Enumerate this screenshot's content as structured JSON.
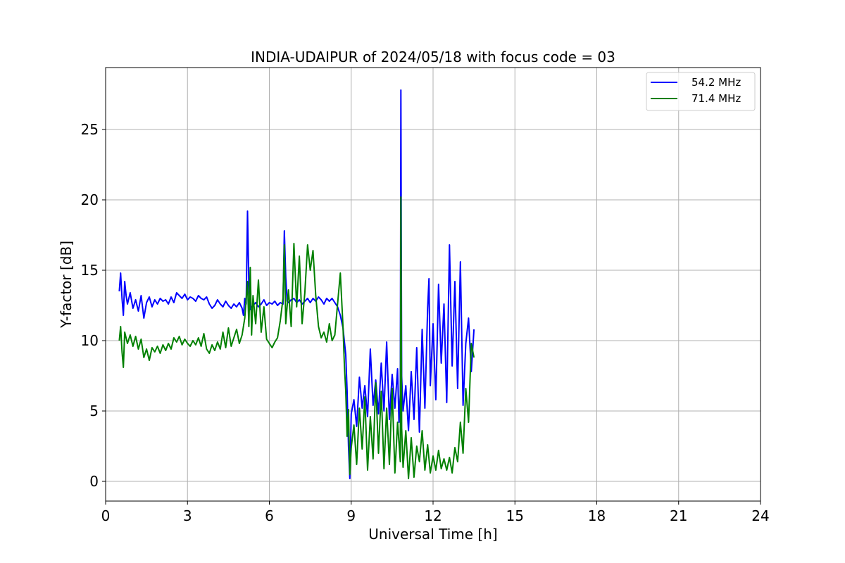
{
  "chart_data": {
    "type": "line",
    "title": "INDIA-UDAIPUR of 2024/05/18 with focus code = 03",
    "xlabel": "Universal Time [h]",
    "ylabel": "Y-factor [dB]",
    "xlim": [
      0,
      24
    ],
    "ylim": [
      -1.4,
      29.4
    ],
    "xticks": [
      0,
      3,
      6,
      9,
      12,
      15,
      18,
      21,
      24
    ],
    "yticks": [
      0,
      5,
      10,
      15,
      20,
      25
    ],
    "grid": true,
    "legend_position": "top-right",
    "colors": {
      "54.2 MHz": "#0000ff",
      "71.4 MHz": "#008000"
    },
    "series": [
      {
        "name": "54.2 MHz",
        "color": "#0000ff",
        "points": [
          [
            0.5,
            13.5
          ],
          [
            0.55,
            14.8
          ],
          [
            0.6,
            13.0
          ],
          [
            0.65,
            11.8
          ],
          [
            0.7,
            14.2
          ],
          [
            0.75,
            13.2
          ],
          [
            0.8,
            12.6
          ],
          [
            0.9,
            13.4
          ],
          [
            1.0,
            12.3
          ],
          [
            1.1,
            12.9
          ],
          [
            1.2,
            12.1
          ],
          [
            1.3,
            13.2
          ],
          [
            1.4,
            11.6
          ],
          [
            1.5,
            12.7
          ],
          [
            1.6,
            13.1
          ],
          [
            1.7,
            12.4
          ],
          [
            1.8,
            12.9
          ],
          [
            1.9,
            12.6
          ],
          [
            2.0,
            13.0
          ],
          [
            2.1,
            12.8
          ],
          [
            2.2,
            12.9
          ],
          [
            2.3,
            12.6
          ],
          [
            2.4,
            13.1
          ],
          [
            2.5,
            12.7
          ],
          [
            2.6,
            13.4
          ],
          [
            2.7,
            13.2
          ],
          [
            2.8,
            13.0
          ],
          [
            2.9,
            13.3
          ],
          [
            3.0,
            12.9
          ],
          [
            3.1,
            13.1
          ],
          [
            3.2,
            13.0
          ],
          [
            3.3,
            12.8
          ],
          [
            3.4,
            13.2
          ],
          [
            3.5,
            13.0
          ],
          [
            3.6,
            12.9
          ],
          [
            3.7,
            13.1
          ],
          [
            3.8,
            12.6
          ],
          [
            3.9,
            12.3
          ],
          [
            4.0,
            12.5
          ],
          [
            4.1,
            12.9
          ],
          [
            4.2,
            12.6
          ],
          [
            4.3,
            12.4
          ],
          [
            4.4,
            12.8
          ],
          [
            4.5,
            12.5
          ],
          [
            4.6,
            12.3
          ],
          [
            4.7,
            12.6
          ],
          [
            4.8,
            12.4
          ],
          [
            4.9,
            12.7
          ],
          [
            5.0,
            12.3
          ],
          [
            5.05,
            11.8
          ],
          [
            5.1,
            13.0
          ],
          [
            5.15,
            12.6
          ],
          [
            5.2,
            19.2
          ],
          [
            5.25,
            14.0
          ],
          [
            5.3,
            12.2
          ],
          [
            5.4,
            12.5
          ],
          [
            5.5,
            12.7
          ],
          [
            5.6,
            12.4
          ],
          [
            5.7,
            12.6
          ],
          [
            5.8,
            12.9
          ],
          [
            5.9,
            12.5
          ],
          [
            6.0,
            12.7
          ],
          [
            6.1,
            12.6
          ],
          [
            6.2,
            12.8
          ],
          [
            6.3,
            12.5
          ],
          [
            6.4,
            12.7
          ],
          [
            6.5,
            12.6
          ],
          [
            6.55,
            17.8
          ],
          [
            6.6,
            14.5
          ],
          [
            6.65,
            12.8
          ],
          [
            6.7,
            12.7
          ],
          [
            6.8,
            12.9
          ],
          [
            6.9,
            13.0
          ],
          [
            7.0,
            12.7
          ],
          [
            7.1,
            12.9
          ],
          [
            7.2,
            12.6
          ],
          [
            7.3,
            12.8
          ],
          [
            7.4,
            13.0
          ],
          [
            7.5,
            12.7
          ],
          [
            7.6,
            13.0
          ],
          [
            7.7,
            12.8
          ],
          [
            7.8,
            13.1
          ],
          [
            7.9,
            12.9
          ],
          [
            8.0,
            12.6
          ],
          [
            8.1,
            13.0
          ],
          [
            8.2,
            12.8
          ],
          [
            8.3,
            13.0
          ],
          [
            8.4,
            12.7
          ],
          [
            8.5,
            12.4
          ],
          [
            8.6,
            11.8
          ],
          [
            8.7,
            10.9
          ],
          [
            8.8,
            9.0
          ],
          [
            8.85,
            6.5
          ],
          [
            8.9,
            2.5
          ],
          [
            8.95,
            0.2
          ],
          [
            9.0,
            4.8
          ],
          [
            9.1,
            5.8
          ],
          [
            9.2,
            3.9
          ],
          [
            9.3,
            7.4
          ],
          [
            9.4,
            5.2
          ],
          [
            9.5,
            6.8
          ],
          [
            9.6,
            4.6
          ],
          [
            9.7,
            9.4
          ],
          [
            9.8,
            5.4
          ],
          [
            9.9,
            7.2
          ],
          [
            10.0,
            4.8
          ],
          [
            10.1,
            8.4
          ],
          [
            10.2,
            5.0
          ],
          [
            10.3,
            9.9
          ],
          [
            10.4,
            4.4
          ],
          [
            10.5,
            7.6
          ],
          [
            10.6,
            5.2
          ],
          [
            10.7,
            8.0
          ],
          [
            10.75,
            4.2
          ],
          [
            10.8,
            6.2
          ],
          [
            10.82,
            27.8
          ],
          [
            10.85,
            7.5
          ],
          [
            10.9,
            5.0
          ],
          [
            11.0,
            6.8
          ],
          [
            11.1,
            3.6
          ],
          [
            11.2,
            7.8
          ],
          [
            11.3,
            4.4
          ],
          [
            11.4,
            9.5
          ],
          [
            11.5,
            3.5
          ],
          [
            11.6,
            10.8
          ],
          [
            11.7,
            5.2
          ],
          [
            11.8,
            12.3
          ],
          [
            11.85,
            14.4
          ],
          [
            11.9,
            6.8
          ],
          [
            12.0,
            11.2
          ],
          [
            12.1,
            5.8
          ],
          [
            12.2,
            14.0
          ],
          [
            12.3,
            8.4
          ],
          [
            12.4,
            12.6
          ],
          [
            12.5,
            5.6
          ],
          [
            12.6,
            16.8
          ],
          [
            12.7,
            8.2
          ],
          [
            12.8,
            14.2
          ],
          [
            12.9,
            6.6
          ],
          [
            13.0,
            15.6
          ],
          [
            13.1,
            5.4
          ],
          [
            13.2,
            9.8
          ],
          [
            13.3,
            11.6
          ],
          [
            13.4,
            7.8
          ],
          [
            13.5,
            10.8
          ]
        ]
      },
      {
        "name": "71.4 MHz",
        "color": "#008000",
        "points": [
          [
            0.5,
            10.0
          ],
          [
            0.55,
            11.0
          ],
          [
            0.6,
            9.2
          ],
          [
            0.65,
            8.1
          ],
          [
            0.7,
            10.6
          ],
          [
            0.8,
            9.8
          ],
          [
            0.9,
            10.4
          ],
          [
            1.0,
            9.6
          ],
          [
            1.1,
            10.3
          ],
          [
            1.2,
            9.4
          ],
          [
            1.3,
            10.1
          ],
          [
            1.4,
            8.8
          ],
          [
            1.5,
            9.4
          ],
          [
            1.6,
            8.6
          ],
          [
            1.7,
            9.5
          ],
          [
            1.8,
            9.2
          ],
          [
            1.9,
            9.6
          ],
          [
            2.0,
            9.1
          ],
          [
            2.1,
            9.7
          ],
          [
            2.2,
            9.3
          ],
          [
            2.3,
            9.8
          ],
          [
            2.4,
            9.4
          ],
          [
            2.5,
            10.2
          ],
          [
            2.6,
            9.9
          ],
          [
            2.7,
            10.3
          ],
          [
            2.8,
            9.7
          ],
          [
            2.9,
            10.1
          ],
          [
            3.0,
            9.8
          ],
          [
            3.1,
            9.6
          ],
          [
            3.2,
            10.0
          ],
          [
            3.3,
            9.7
          ],
          [
            3.4,
            10.2
          ],
          [
            3.5,
            9.6
          ],
          [
            3.6,
            10.5
          ],
          [
            3.7,
            9.4
          ],
          [
            3.8,
            9.1
          ],
          [
            3.9,
            9.7
          ],
          [
            4.0,
            9.3
          ],
          [
            4.1,
            9.9
          ],
          [
            4.2,
            9.4
          ],
          [
            4.3,
            10.6
          ],
          [
            4.4,
            9.5
          ],
          [
            4.5,
            10.9
          ],
          [
            4.6,
            9.6
          ],
          [
            4.7,
            10.2
          ],
          [
            4.8,
            10.8
          ],
          [
            4.9,
            9.8
          ],
          [
            5.0,
            10.4
          ],
          [
            5.1,
            11.6
          ],
          [
            5.2,
            14.2
          ],
          [
            5.25,
            11.0
          ],
          [
            5.3,
            15.2
          ],
          [
            5.35,
            10.4
          ],
          [
            5.4,
            13.2
          ],
          [
            5.5,
            11.2
          ],
          [
            5.6,
            14.3
          ],
          [
            5.7,
            10.6
          ],
          [
            5.8,
            12.4
          ],
          [
            5.9,
            10.1
          ],
          [
            6.0,
            9.8
          ],
          [
            6.1,
            9.5
          ],
          [
            6.2,
            9.9
          ],
          [
            6.3,
            10.2
          ],
          [
            6.4,
            11.4
          ],
          [
            6.5,
            13.0
          ],
          [
            6.55,
            16.8
          ],
          [
            6.6,
            11.2
          ],
          [
            6.7,
            13.6
          ],
          [
            6.8,
            11.0
          ],
          [
            6.9,
            16.9
          ],
          [
            7.0,
            12.4
          ],
          [
            7.1,
            16.0
          ],
          [
            7.2,
            11.2
          ],
          [
            7.3,
            13.4
          ],
          [
            7.4,
            16.8
          ],
          [
            7.5,
            15.0
          ],
          [
            7.6,
            16.4
          ],
          [
            7.7,
            13.2
          ],
          [
            7.8,
            11.0
          ],
          [
            7.9,
            10.2
          ],
          [
            8.0,
            10.6
          ],
          [
            8.1,
            9.9
          ],
          [
            8.2,
            11.2
          ],
          [
            8.3,
            10.0
          ],
          [
            8.4,
            10.4
          ],
          [
            8.5,
            12.6
          ],
          [
            8.6,
            14.8
          ],
          [
            8.7,
            11.0
          ],
          [
            8.75,
            8.2
          ],
          [
            8.8,
            6.4
          ],
          [
            8.85,
            3.2
          ],
          [
            8.9,
            5.1
          ],
          [
            8.95,
            0.5
          ],
          [
            9.0,
            2.4
          ],
          [
            9.1,
            4.0
          ],
          [
            9.2,
            1.2
          ],
          [
            9.3,
            5.2
          ],
          [
            9.4,
            2.3
          ],
          [
            9.5,
            6.0
          ],
          [
            9.6,
            0.8
          ],
          [
            9.7,
            4.6
          ],
          [
            9.8,
            1.6
          ],
          [
            9.9,
            7.0
          ],
          [
            10.0,
            2.0
          ],
          [
            10.1,
            6.4
          ],
          [
            10.2,
            0.9
          ],
          [
            10.3,
            5.2
          ],
          [
            10.4,
            1.2
          ],
          [
            10.5,
            6.6
          ],
          [
            10.6,
            0.6
          ],
          [
            10.7,
            4.2
          ],
          [
            10.8,
            1.4
          ],
          [
            10.82,
            20.2
          ],
          [
            10.85,
            3.8
          ],
          [
            10.9,
            1.0
          ],
          [
            11.0,
            3.6
          ],
          [
            11.1,
            0.2
          ],
          [
            11.2,
            3.1
          ],
          [
            11.3,
            0.3
          ],
          [
            11.4,
            2.5
          ],
          [
            11.5,
            1.4
          ],
          [
            11.6,
            3.6
          ],
          [
            11.7,
            0.8
          ],
          [
            11.8,
            2.6
          ],
          [
            11.9,
            0.6
          ],
          [
            12.0,
            1.8
          ],
          [
            12.1,
            0.8
          ],
          [
            12.2,
            2.2
          ],
          [
            12.3,
            0.9
          ],
          [
            12.4,
            1.6
          ],
          [
            12.5,
            0.8
          ],
          [
            12.6,
            1.7
          ],
          [
            12.7,
            0.6
          ],
          [
            12.8,
            2.4
          ],
          [
            12.9,
            1.4
          ],
          [
            13.0,
            4.2
          ],
          [
            13.1,
            2.0
          ],
          [
            13.2,
            6.6
          ],
          [
            13.3,
            4.2
          ],
          [
            13.4,
            9.8
          ],
          [
            13.5,
            8.8
          ]
        ]
      }
    ]
  }
}
